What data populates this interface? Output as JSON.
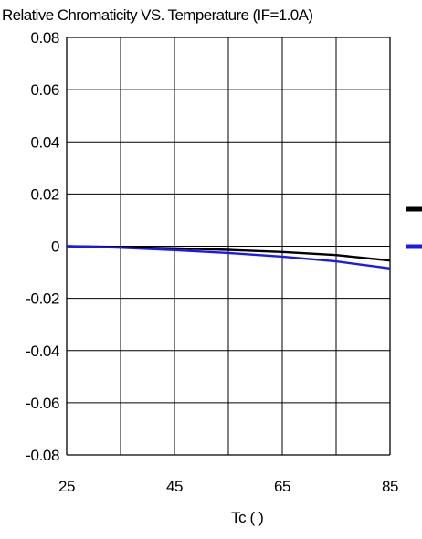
{
  "chart_data": {
    "type": "line",
    "title": "Relative Chromaticity VS. Temperature (IF=1.0A)",
    "xlabel": "Tc (  )",
    "ylabel": "",
    "xlim": [
      25,
      85
    ],
    "ylim": [
      -0.08,
      0.08
    ],
    "x_ticks": [
      "25",
      "45",
      "65",
      "85"
    ],
    "y_ticks": [
      "0.08",
      "0.06",
      "0.04",
      "0.02",
      "0",
      "-0.02",
      "-0.04",
      "-0.06",
      "-0.08"
    ],
    "grid": true,
    "x": [
      25,
      35,
      45,
      55,
      65,
      75,
      85
    ],
    "series": [
      {
        "values": [
          0,
          -0.0003,
          -0.0008,
          -0.0014,
          -0.0022,
          -0.0034,
          -0.0055
        ],
        "color": "#000000"
      },
      {
        "values": [
          0,
          -0.0006,
          -0.0015,
          -0.0026,
          -0.004,
          -0.0058,
          -0.0085
        ],
        "color": "#1a1aee"
      }
    ],
    "legend": "right"
  }
}
